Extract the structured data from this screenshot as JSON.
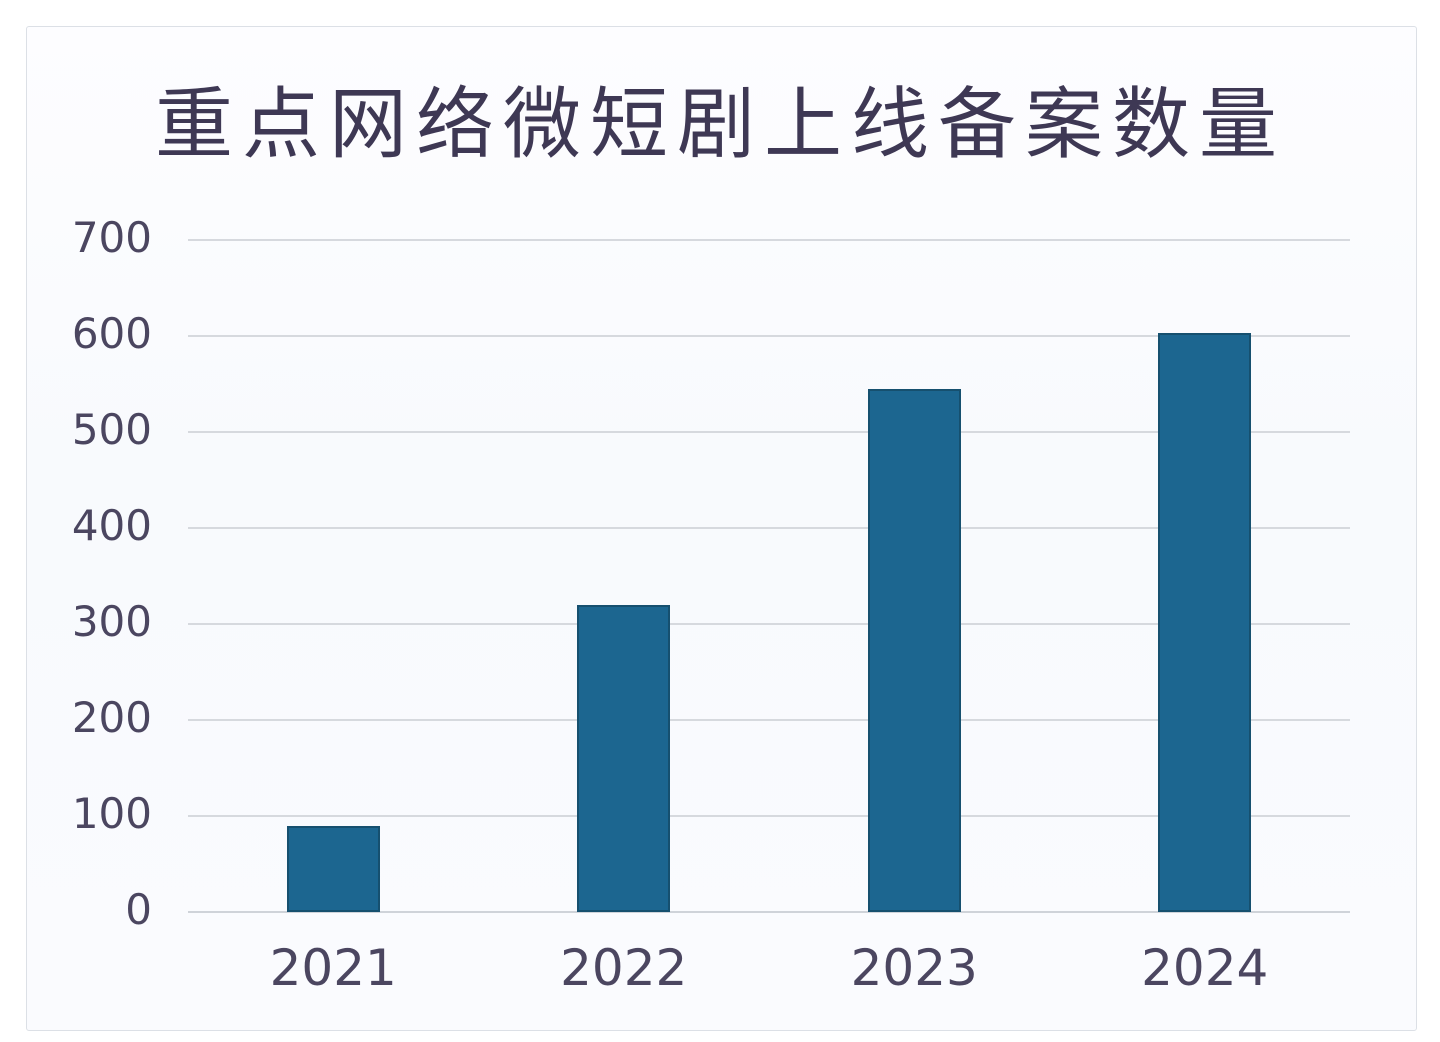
{
  "page": {
    "background": "#ffffff",
    "panel_background": "#fafbfe",
    "panel_border": "#dce0e6"
  },
  "chart_data": {
    "type": "bar",
    "title": "重点网络微短剧上线备案数量",
    "categories": [
      "2021",
      "2022",
      "2023",
      "2024"
    ],
    "values": [
      90,
      320,
      545,
      603
    ],
    "xlabel": "",
    "ylabel": "",
    "ylim": [
      0,
      700
    ],
    "yticks": [
      0,
      100,
      200,
      300,
      400,
      500,
      600,
      700
    ],
    "grid": true,
    "legend": false,
    "bar_color": "#1c6690",
    "bar_border_color": "#16506f",
    "gridline_color": "#d6d9de",
    "title_color": "#3e3854",
    "tick_label_color": "#4b4660"
  }
}
